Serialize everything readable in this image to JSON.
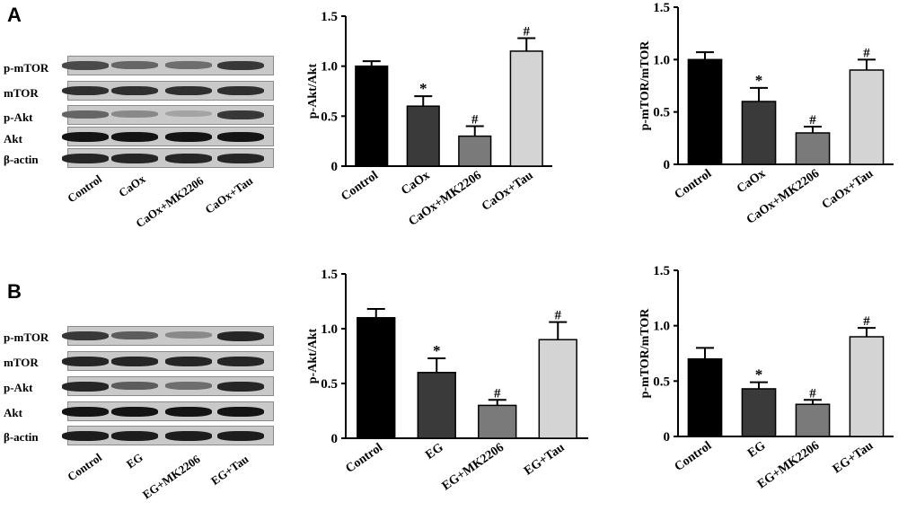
{
  "panels": [
    {
      "letter": "A",
      "blot": {
        "proteins": [
          "p-mTOR",
          "mTOR",
          "p-Akt",
          "Akt",
          "β-actin"
        ],
        "lanes": [
          "Control",
          "CaOx",
          "CaOx+MK2206",
          "CaOx+Tau"
        ]
      }
    },
    {
      "letter": "B",
      "blot": {
        "proteins": [
          "p-mTOR",
          "mTOR",
          "p-Akt",
          "Akt",
          "β-actin"
        ],
        "lanes": [
          "Control",
          "EG",
          "EG+MK2206",
          "EG+Tau"
        ]
      }
    }
  ],
  "chart_data": [
    {
      "type": "bar",
      "title": "",
      "ylabel": "p-Akt/Akt",
      "categories": [
        "Control",
        "CaOx",
        "CaOx+MK2206",
        "CaOx+Tau"
      ],
      "values": [
        1.0,
        0.6,
        0.3,
        1.15
      ],
      "errors": [
        0.05,
        0.1,
        0.1,
        0.13
      ],
      "annotations": [
        "",
        "*",
        "#",
        "#"
      ],
      "ylim": [
        0,
        1.5
      ],
      "yticks": [
        "0",
        "0.5",
        "1.0",
        "1.5"
      ],
      "colors": [
        "#000000",
        "#3a3a3a",
        "#7a7a7a",
        "#d4d4d4"
      ]
    },
    {
      "type": "bar",
      "title": "",
      "ylabel": "p-mTOR/mTOR",
      "categories": [
        "Control",
        "CaOx",
        "CaOx+MK2206",
        "CaOx+Tau"
      ],
      "values": [
        1.0,
        0.6,
        0.3,
        0.9
      ],
      "errors": [
        0.07,
        0.13,
        0.06,
        0.1
      ],
      "annotations": [
        "",
        "*",
        "#",
        "#"
      ],
      "ylim": [
        0,
        1.5
      ],
      "yticks": [
        "0",
        "0.5",
        "1.0",
        "1.5"
      ],
      "colors": [
        "#000000",
        "#3a3a3a",
        "#7a7a7a",
        "#d4d4d4"
      ]
    },
    {
      "type": "bar",
      "title": "",
      "ylabel": "p-Akt/Akt",
      "categories": [
        "Control",
        "EG",
        "EG+MK2206",
        "EG+Tau"
      ],
      "values": [
        1.1,
        0.6,
        0.3,
        0.9
      ],
      "errors": [
        0.08,
        0.13,
        0.05,
        0.16
      ],
      "annotations": [
        "",
        "*",
        "#",
        "#"
      ],
      "ylim": [
        0,
        1.5
      ],
      "yticks": [
        "0",
        "0.5",
        "1.0",
        "1.5"
      ],
      "colors": [
        "#000000",
        "#3a3a3a",
        "#7a7a7a",
        "#d4d4d4"
      ]
    },
    {
      "type": "bar",
      "title": "",
      "ylabel": "p-mTOR/mTOR",
      "categories": [
        "Control",
        "EG",
        "EG+MK2206",
        "EG+Tau"
      ],
      "values": [
        0.7,
        0.43,
        0.29,
        0.9
      ],
      "errors": [
        0.1,
        0.06,
        0.04,
        0.08
      ],
      "annotations": [
        "",
        "*",
        "#",
        "#"
      ],
      "ylim": [
        0,
        1.5
      ],
      "yticks": [
        "0",
        "0.5",
        "1.0",
        "1.5"
      ],
      "colors": [
        "#000000",
        "#3a3a3a",
        "#7a7a7a",
        "#d4d4d4"
      ]
    }
  ]
}
